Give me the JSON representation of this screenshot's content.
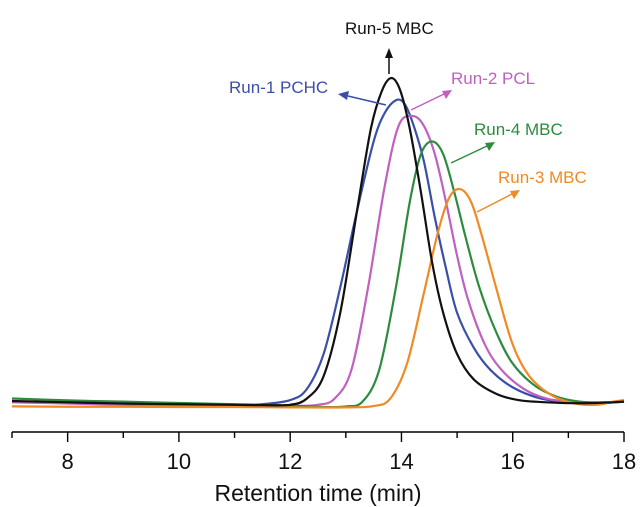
{
  "chart_data": {
    "type": "line",
    "title": "",
    "xlabel": "Retention time (min)",
    "ylabel": "",
    "xlim": [
      7,
      18
    ],
    "x_ticks": [
      8,
      10,
      12,
      14,
      16,
      18
    ],
    "x_tick_labels": [
      "8",
      "10",
      "12",
      "14",
      "16",
      "18"
    ],
    "y_axis_visible": false,
    "grid": false,
    "series": [
      {
        "name": "Run-1 PCHC",
        "color": "#3a4fa8",
        "x": [
          7,
          8,
          9,
          10,
          10.5,
          11,
          11.5,
          12,
          12.3,
          12.6,
          12.9,
          13.2,
          13.5,
          13.7,
          13.9,
          14.05,
          14.2,
          14.4,
          14.6,
          14.8,
          15.0,
          15.3,
          15.6,
          16.0,
          16.5,
          17.0,
          17.5,
          18.0
        ],
        "y": [
          0.02,
          0.016,
          0.012,
          0.01,
          0.009,
          0.01,
          0.012,
          0.025,
          0.06,
          0.17,
          0.38,
          0.62,
          0.84,
          0.93,
          0.97,
          0.96,
          0.9,
          0.78,
          0.6,
          0.44,
          0.3,
          0.19,
          0.12,
          0.065,
          0.03,
          0.018,
          0.015,
          0.02
        ]
      },
      {
        "name": "Run-2 PCL",
        "color": "#c060c0",
        "x": [
          7,
          8,
          9,
          10,
          11,
          11.5,
          12,
          12.5,
          12.8,
          13.1,
          13.4,
          13.7,
          13.95,
          14.2,
          14.4,
          14.6,
          14.8,
          15.0,
          15.2,
          15.5,
          15.8,
          16.2,
          16.6,
          17.0,
          17.5,
          18.0
        ],
        "y": [
          0.018,
          0.014,
          0.01,
          0.008,
          0.006,
          0.005,
          0.006,
          0.01,
          0.03,
          0.12,
          0.38,
          0.7,
          0.89,
          0.92,
          0.89,
          0.8,
          0.65,
          0.48,
          0.34,
          0.2,
          0.12,
          0.06,
          0.03,
          0.02,
          0.018,
          0.02
        ]
      },
      {
        "name": "Run-4 MBC",
        "color": "#2e8b3e",
        "x": [
          7,
          8,
          9,
          10,
          11,
          12,
          12.6,
          13.0,
          13.3,
          13.6,
          13.9,
          14.15,
          14.35,
          14.55,
          14.75,
          14.95,
          15.15,
          15.4,
          15.7,
          16.0,
          16.4,
          16.8,
          17.2,
          17.6,
          18.0
        ],
        "y": [
          0.03,
          0.024,
          0.02,
          0.016,
          0.012,
          0.008,
          0.003,
          0.005,
          0.02,
          0.12,
          0.38,
          0.65,
          0.8,
          0.84,
          0.8,
          0.68,
          0.54,
          0.38,
          0.24,
          0.14,
          0.07,
          0.035,
          0.02,
          0.016,
          0.02
        ]
      },
      {
        "name": "Run-3 MBC",
        "color": "#f08a24",
        "x": [
          7,
          8,
          9,
          10,
          11,
          12,
          13,
          13.5,
          13.8,
          14.1,
          14.4,
          14.65,
          14.85,
          15.05,
          15.25,
          15.45,
          15.7,
          16.0,
          16.3,
          16.7,
          17.1,
          17.5,
          17.8,
          18.0
        ],
        "y": [
          0.005,
          0.004,
          0.004,
          0.003,
          0.003,
          0.002,
          0.002,
          0.006,
          0.03,
          0.14,
          0.36,
          0.55,
          0.66,
          0.69,
          0.65,
          0.54,
          0.38,
          0.2,
          0.1,
          0.04,
          0.015,
          0.01,
          0.02,
          0.025
        ]
      },
      {
        "name": "Run-5 MBC",
        "color": "#111111",
        "x": [
          7,
          8,
          9,
          10,
          11,
          11.5,
          12,
          12.3,
          12.6,
          12.9,
          13.2,
          13.45,
          13.65,
          13.82,
          13.98,
          14.15,
          14.35,
          14.55,
          14.75,
          15.0,
          15.3,
          15.7,
          16.1,
          16.6,
          17.2,
          17.8,
          18.0
        ],
        "y": [
          0.022,
          0.018,
          0.014,
          0.012,
          0.01,
          0.009,
          0.01,
          0.03,
          0.1,
          0.3,
          0.62,
          0.88,
          1.0,
          1.04,
          1.0,
          0.88,
          0.68,
          0.46,
          0.3,
          0.17,
          0.09,
          0.045,
          0.025,
          0.018,
          0.015,
          0.018,
          0.02
        ]
      }
    ],
    "annotations": [
      {
        "label": "Run-5 MBC",
        "color": "#111111"
      },
      {
        "label": "Run-1 PCHC",
        "color": "#3a4fa8"
      },
      {
        "label": "Run-2 PCL",
        "color": "#c060c0"
      },
      {
        "label": "Run-4 MBC",
        "color": "#2e8b3e"
      },
      {
        "label": "Run-3 MBC",
        "color": "#f08a24"
      }
    ]
  }
}
